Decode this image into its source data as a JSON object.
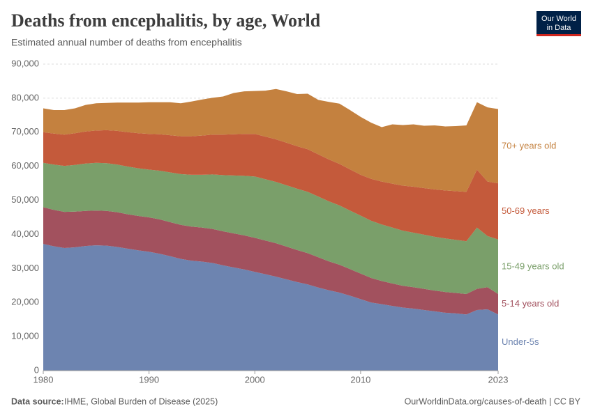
{
  "chart_data": {
    "type": "stacked_area",
    "title": "Deaths from encephalitis, by age, World",
    "subtitle": "Estimated annual number of deaths from encephalitis",
    "x": [
      1980,
      1981,
      1982,
      1983,
      1984,
      1985,
      1986,
      1987,
      1988,
      1989,
      1990,
      1991,
      1992,
      1993,
      1994,
      1995,
      1996,
      1997,
      1998,
      1999,
      2000,
      2001,
      2002,
      2003,
      2004,
      2005,
      2006,
      2007,
      2008,
      2009,
      2010,
      2011,
      2012,
      2013,
      2014,
      2015,
      2016,
      2017,
      2018,
      2019,
      2020,
      2021,
      2022,
      2023
    ],
    "xlim": [
      1980,
      2023
    ],
    "xticks": [
      1980,
      1990,
      2000,
      2010,
      2023
    ],
    "ylim": [
      0,
      90000
    ],
    "yticks": [
      0,
      {
        "value": 10000,
        "label": "10,000"
      },
      {
        "value": 20000,
        "label": "20,000"
      },
      {
        "value": 30000,
        "label": "30,000"
      },
      {
        "value": 40000,
        "label": "40,000"
      },
      {
        "value": 50000,
        "label": "50,000"
      },
      {
        "value": 60000,
        "label": "60,000"
      },
      {
        "value": 70000,
        "label": "70,000"
      },
      {
        "value": 80000,
        "label": "80,000"
      },
      {
        "value": 90000,
        "label": "90,000"
      }
    ],
    "grid": true,
    "series": [
      {
        "name": "Under-5s",
        "color": "#6d84b0",
        "values": [
          37200,
          36500,
          36000,
          36200,
          36600,
          36800,
          36700,
          36300,
          35800,
          35300,
          34900,
          34300,
          33600,
          32800,
          32300,
          32000,
          31600,
          30900,
          30300,
          29700,
          29000,
          28300,
          27600,
          26800,
          26000,
          25300,
          24400,
          23600,
          22900,
          22000,
          21000,
          20000,
          19500,
          19000,
          18500,
          18200,
          17800,
          17400,
          17000,
          16800,
          16500,
          17800,
          18000,
          16500
        ]
      },
      {
        "name": "5-14 years old",
        "color": "#a2515e",
        "values": [
          10800,
          10700,
          10600,
          10500,
          10300,
          10200,
          10200,
          10200,
          10100,
          10100,
          10100,
          10100,
          10000,
          10000,
          10000,
          10000,
          10000,
          10000,
          10000,
          10000,
          10000,
          9900,
          9800,
          9600,
          9400,
          9200,
          8900,
          8500,
          8200,
          7800,
          7500,
          7200,
          6800,
          6600,
          6400,
          6300,
          6200,
          6100,
          6100,
          6000,
          6000,
          6200,
          6500,
          6000
        ]
      },
      {
        "name": "15-49 years old",
        "color": "#7a9f6a",
        "values": [
          13000,
          13300,
          13500,
          13700,
          13900,
          14000,
          14000,
          14000,
          14000,
          14000,
          14000,
          14300,
          14600,
          14900,
          15200,
          15500,
          16000,
          16500,
          17000,
          17500,
          18000,
          18000,
          18000,
          18000,
          18000,
          18000,
          17800,
          17600,
          17400,
          17200,
          17000,
          16800,
          16600,
          16400,
          16200,
          16000,
          15900,
          15800,
          15700,
          15600,
          15500,
          18000,
          15000,
          16000
        ]
      },
      {
        "name": "50-69 years",
        "color": "#c45a3b",
        "values": [
          9000,
          9100,
          9200,
          9300,
          9400,
          9500,
          9700,
          9900,
          10100,
          10300,
          10500,
          10700,
          10900,
          11100,
          11300,
          11500,
          11700,
          11900,
          12100,
          12300,
          12500,
          12500,
          12500,
          12500,
          12500,
          12500,
          12400,
          12300,
          12200,
          12100,
          12000,
          12300,
          12600,
          12900,
          13200,
          13500,
          13700,
          13900,
          14100,
          14300,
          14500,
          17000,
          16000,
          16500
        ]
      },
      {
        "name": "70+ years old",
        "color": "#c4813f",
        "values": [
          7000,
          6900,
          7200,
          7300,
          7800,
          8000,
          8000,
          8300,
          8700,
          9000,
          9300,
          9400,
          9700,
          9700,
          10200,
          10600,
          10800,
          11200,
          12100,
          12500,
          12600,
          13500,
          14800,
          15100,
          15300,
          16300,
          16000,
          16900,
          17700,
          17400,
          17000,
          16500,
          16000,
          17400,
          17800,
          18300,
          18300,
          18800,
          18800,
          19100,
          19500,
          19800,
          21800,
          21800
        ]
      }
    ],
    "source_label": "Data source:",
    "source": "IHME, Global Burden of Disease (2025)",
    "url": "OurWorldinData.org/causes-of-death | CC BY",
    "logo": [
      "Our World",
      "in Data"
    ]
  }
}
